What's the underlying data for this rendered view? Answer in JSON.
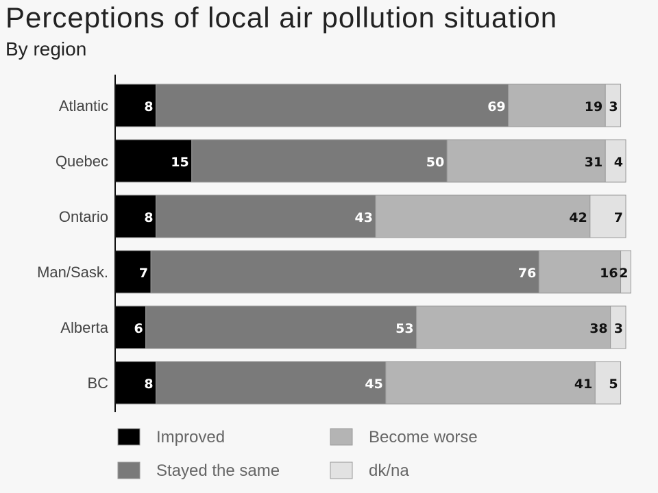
{
  "chart_data": {
    "type": "bar",
    "orientation": "horizontal",
    "stacked": true,
    "title": "Perceptions of local air pollution situation",
    "subtitle": "By region",
    "categories": [
      "Atlantic",
      "Quebec",
      "Ontario",
      "Man/Sask.",
      "Alberta",
      "BC"
    ],
    "series": [
      {
        "name": "Improved",
        "color": "#000000",
        "label_color": "#ffffff",
        "values": [
          8,
          15,
          8,
          7,
          6,
          8
        ]
      },
      {
        "name": "Stayed the same",
        "color": "#7a7a7a",
        "label_color": "#ffffff",
        "values": [
          69,
          50,
          43,
          76,
          53,
          45
        ]
      },
      {
        "name": "Become worse",
        "color": "#b4b4b4",
        "label_color": "#111111",
        "values": [
          19,
          31,
          42,
          16,
          38,
          41
        ]
      },
      {
        "name": "dk/na",
        "color": "#e2e2e2",
        "label_color": "#111111",
        "values": [
          3,
          4,
          7,
          2,
          3,
          5
        ]
      }
    ],
    "xlim": [
      0,
      100
    ],
    "grid": false,
    "legend_position": "bottom"
  }
}
